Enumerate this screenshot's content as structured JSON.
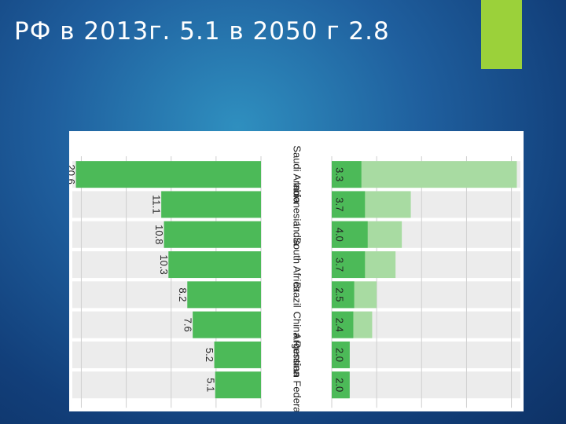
{
  "slide": {
    "title": "РФ в 2013г. 5.1  в 2050 г 2.8"
  },
  "colors": {
    "accent": "#9bd13a",
    "bar_dark": "#4cba58",
    "bar_light": "#a8dba2",
    "stripe": "#ececec"
  },
  "chart_data": {
    "type": "bar",
    "categories": [
      "Saudi Arabia",
      "Indonesia",
      "India",
      "South Africa",
      "Brazil",
      "China",
      "Argentina",
      "Russian Federation"
    ],
    "series": [
      {
        "values": [
          20.6,
          11.1,
          10.8,
          10.3,
          8.2,
          7.6,
          5.2,
          5.1
        ],
        "labels": [
          "20.6",
          "11.1",
          "10.8",
          "10.3",
          "8.2",
          "7.6",
          "5.2",
          "5.1"
        ]
      },
      {
        "values": [
          3.3,
          3.7,
          4.0,
          3.7,
          2.5,
          2.4,
          2.0,
          2.0
        ],
        "labels": [
          "3.3",
          "3.7",
          "4.0",
          "3.7",
          "2.5",
          "2.4",
          "2.0",
          "2.0"
        ]
      },
      {
        "values": [
          20.6,
          8.8,
          7.8,
          7.1,
          5.0,
          4.5,
          2.0,
          1.9
        ]
      }
    ],
    "legend": "none",
    "grid": true
  }
}
